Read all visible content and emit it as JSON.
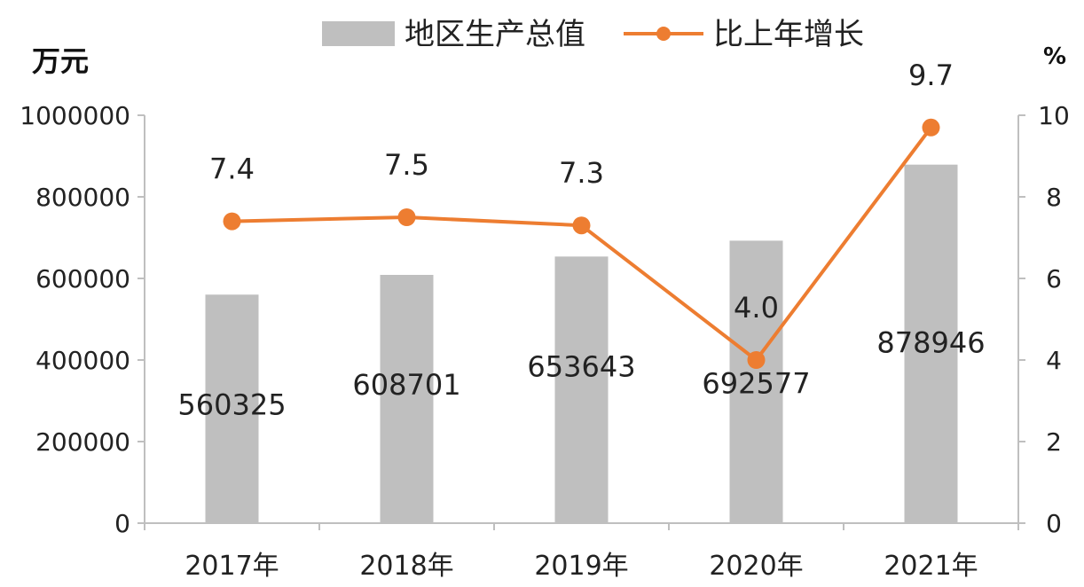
{
  "legend": {
    "bar_label": "地区生产总值",
    "line_label": "比上年增长"
  },
  "axis": {
    "left_unit": "万元",
    "right_unit": "%"
  },
  "chart_data": {
    "type": "bar",
    "categories": [
      "2017年",
      "2018年",
      "2019年",
      "2020年",
      "2021年"
    ],
    "series": [
      {
        "name": "地区生产总值",
        "type": "bar",
        "axis": "left",
        "values": [
          560325,
          608701,
          653643,
          692577,
          878946
        ],
        "labels": [
          "560325",
          "608701",
          "653643",
          "692577",
          "878946"
        ]
      },
      {
        "name": "比上年增长",
        "type": "line",
        "axis": "right",
        "values": [
          7.4,
          7.5,
          7.3,
          4.0,
          9.7
        ],
        "labels": [
          "7.4",
          "7.5",
          "7.3",
          "4.0",
          "9.7"
        ]
      }
    ],
    "y_left": {
      "min": 0,
      "max": 1000000,
      "ticks": [
        0,
        200000,
        400000,
        600000,
        800000,
        1000000
      ]
    },
    "y_right": {
      "min": 0,
      "max": 10,
      "ticks": [
        0,
        2,
        4,
        6,
        8,
        10
      ]
    },
    "grid": false,
    "legend_position": "top",
    "colors": {
      "bar": "#bfbfbf",
      "line": "#ed7d31",
      "axis": "#bfbfbf"
    }
  }
}
